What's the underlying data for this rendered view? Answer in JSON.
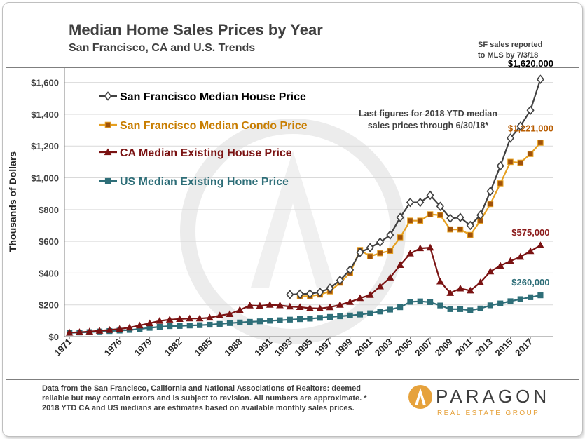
{
  "header": {
    "title": "Median Home Sales Prices by Year",
    "subtitle": "San Francisco, CA and U.S. Trends",
    "note_line1": "SF sales reported",
    "note_line2": "to MLS by 7/3/18"
  },
  "footer": {
    "footnote_line1": "Data from the San Francisco, California and National Associations of Realtors:  deemed",
    "footnote_line2": "reliable but may contain errors and is subject to revision. All numbers are approximate. *",
    "footnote_line3": "2018 YTD CA and US medians are estimates based on available monthly sales prices.",
    "logo_name": "PARAGON",
    "logo_tagline": "REAL ESTATE GROUP"
  },
  "colors": {
    "sf_house": "#404040",
    "sf_condo": "#e6a020",
    "ca_house": "#7a1212",
    "us_home": "#2e6e78",
    "callout_condo": "#b85c00",
    "callout_ca": "#8b1a1a",
    "callout_us": "#2e6e78"
  },
  "chart_data": {
    "type": "line",
    "ylabel": "Thousands of Dollars",
    "ylim": [
      0,
      1700
    ],
    "y_ticks": [
      0,
      200,
      400,
      600,
      800,
      1000,
      1200,
      1400,
      1600
    ],
    "y_tick_labels": [
      "$0",
      "$200",
      "$400",
      "$600",
      "$800",
      "$1,000",
      "$1,200",
      "$1,400",
      "$1,600"
    ],
    "x_tick_labels": [
      "1971",
      "1976",
      "1979",
      "1982",
      "1985",
      "1988",
      "1991",
      "1993",
      "1995",
      "1997",
      "1999",
      "2001",
      "2003",
      "2005",
      "2007",
      "2009",
      "2011",
      "2013",
      "2015",
      "2017"
    ],
    "annotation": {
      "line1": "Last figures for 2018 YTD median",
      "line2": "sales prices through 6/30/18*"
    },
    "series": [
      {
        "name": "San Francisco Median House Price",
        "marker": "diamond",
        "x": [
          1993,
          1994,
          1995,
          1996,
          1997,
          1998,
          1999,
          2000,
          2001,
          2002,
          2003,
          2004,
          2005,
          2006,
          2007,
          2008,
          2009,
          2010,
          2011,
          2012,
          2013,
          2014,
          2015,
          2016,
          2017,
          2018
        ],
        "values": [
          265,
          268,
          270,
          280,
          305,
          355,
          420,
          530,
          560,
          595,
          640,
          750,
          845,
          845,
          890,
          820,
          745,
          750,
          700,
          765,
          915,
          1075,
          1250,
          1325,
          1425,
          1620
        ],
        "end_label": "$1,620,000"
      },
      {
        "name": "San Francisco Median Condo Price",
        "marker": "square",
        "x": [
          1994,
          1995,
          1996,
          1997,
          1998,
          1999,
          2000,
          2001,
          2002,
          2003,
          2004,
          2005,
          2006,
          2007,
          2008,
          2009,
          2010,
          2011,
          2012,
          2013,
          2014,
          2015,
          2016,
          2017,
          2018
        ],
        "values": [
          255,
          255,
          265,
          285,
          340,
          400,
          545,
          505,
          525,
          540,
          625,
          730,
          730,
          770,
          765,
          675,
          675,
          640,
          730,
          835,
          965,
          1100,
          1095,
          1150,
          1221
        ],
        "end_label": "$1,221,000"
      },
      {
        "name": "CA Median Existing House Price",
        "marker": "triangle",
        "x": [
          1971,
          1972,
          1973,
          1974,
          1975,
          1976,
          1977,
          1978,
          1979,
          1980,
          1981,
          1982,
          1983,
          1984,
          1985,
          1986,
          1987,
          1988,
          1989,
          1990,
          1991,
          1992,
          1993,
          1994,
          1995,
          1996,
          1997,
          1998,
          1999,
          2000,
          2001,
          2002,
          2003,
          2004,
          2005,
          2006,
          2007,
          2008,
          2009,
          2010,
          2011,
          2012,
          2013,
          2014,
          2015,
          2016,
          2017,
          2018
        ],
        "values": [
          25,
          28,
          32,
          37,
          42,
          48,
          57,
          70,
          84,
          99,
          107,
          111,
          114,
          114,
          119,
          133,
          142,
          168,
          196,
          194,
          200,
          197,
          189,
          186,
          179,
          177,
          185,
          200,
          218,
          242,
          262,
          316,
          372,
          451,
          523,
          556,
          560,
          347,
          275,
          303,
          290,
          341,
          410,
          446,
          476,
          502,
          538,
          575
        ],
        "end_label": "$575,000"
      },
      {
        "name": "US Median Existing Home Price",
        "marker": "square",
        "x": [
          1971,
          1972,
          1973,
          1974,
          1975,
          1976,
          1977,
          1978,
          1979,
          1980,
          1981,
          1982,
          1983,
          1984,
          1985,
          1986,
          1987,
          1988,
          1989,
          1990,
          1991,
          1992,
          1993,
          1994,
          1995,
          1996,
          1997,
          1998,
          1999,
          2000,
          2001,
          2002,
          2003,
          2004,
          2005,
          2006,
          2007,
          2008,
          2009,
          2010,
          2011,
          2012,
          2013,
          2014,
          2015,
          2016,
          2017,
          2018
        ],
        "values": [
          24,
          26,
          28,
          32,
          35,
          38,
          42,
          48,
          55,
          62,
          66,
          67,
          70,
          72,
          75,
          80,
          85,
          89,
          93,
          96,
          100,
          103,
          107,
          110,
          113,
          118,
          124,
          128,
          133,
          139,
          147,
          158,
          170,
          185,
          219,
          222,
          217,
          196,
          173,
          173,
          166,
          177,
          197,
          209,
          223,
          236,
          248,
          260
        ],
        "end_label": "$260,000"
      }
    ]
  }
}
